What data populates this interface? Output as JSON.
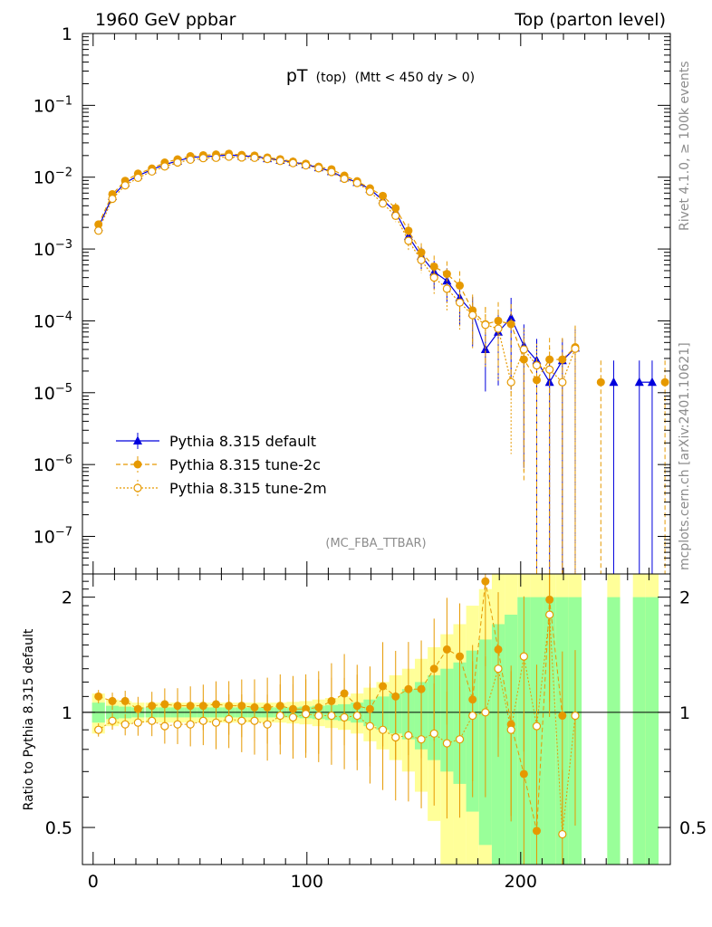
{
  "header": {
    "left": "1960 GeV ppbar",
    "right": "Top (parton level)"
  },
  "plot_title": {
    "main": "pT",
    "sub1": "(top)",
    "sub2": "(Mtt < 450 dy > 0)"
  },
  "side_labels": {
    "rivet": "Rivet 4.1.0, ≥ 100k events",
    "mcplots": "mcplots.cern.ch [arXiv:2401.10621]"
  },
  "analysis_tag": "(MC_FBA_TTBAR)",
  "colors": {
    "default": "#0000dd",
    "tune2c": "#e69900",
    "tune2m": "#e69900",
    "band_inner": "#99ff99",
    "band_outer": "#ffff99"
  },
  "chart_data": [
    {
      "type": "line",
      "panel": "main",
      "title": "pT (top) (Mtt < 450 dy > 0)",
      "xlabel": "",
      "ylabel": "",
      "xlim": [
        -5,
        270
      ],
      "ylim": [
        3e-08,
        1.0
      ],
      "yscale": "log",
      "ytick_labels": [
        "1",
        "10^-1",
        "10^-2",
        "10^-3",
        "10^-4",
        "10^-5",
        "10^-6",
        "10^-7"
      ],
      "legend": [
        "Pythia 8.315 default",
        "Pythia 8.315 tune-2c",
        "Pythia 8.315 tune-2m"
      ],
      "x": [
        2.5,
        9,
        15,
        21,
        27.5,
        33.5,
        39.5,
        45.5,
        51.5,
        57.5,
        63.5,
        69.5,
        75.5,
        81.5,
        87.5,
        93.5,
        99.5,
        105.5,
        111.5,
        117.5,
        123.5,
        129.5,
        135.5,
        141.5,
        147.5,
        153.5,
        159.5,
        165.5,
        171.5,
        177.5,
        183.5,
        189.5,
        195.5,
        201.5,
        207.5,
        213.5,
        219.5,
        225.5,
        231.5,
        237.5,
        243.5,
        249.5,
        255.5,
        261.5,
        267.5
      ],
      "series": [
        {
          "name": "Pythia 8.315 default",
          "values": [
            0.002,
            0.0054,
            0.0083,
            0.0105,
            0.0127,
            0.015,
            0.0168,
            0.0188,
            0.0193,
            0.0197,
            0.0205,
            0.0197,
            0.0195,
            0.0182,
            0.0172,
            0.0162,
            0.015,
            0.0136,
            0.012,
            0.0098,
            0.0085,
            0.0068,
            0.0048,
            0.0033,
            0.0015,
            0.0008,
            0.00048,
            0.00036,
            0.00021,
            0.00013,
            4e-05,
            7e-05,
            0.00011,
            4.5e-05,
            2.8e-05,
            1.4e-05,
            2.8e-05,
            4.2e-05,
            null,
            null,
            1.4e-05,
            null,
            1.4e-05,
            1.4e-05,
            null
          ]
        },
        {
          "name": "Pythia 8.315 tune-2c",
          "values": [
            0.0022,
            0.0058,
            0.0089,
            0.0112,
            0.0132,
            0.016,
            0.0177,
            0.0196,
            0.0202,
            0.0207,
            0.0212,
            0.0204,
            0.02,
            0.0188,
            0.0178,
            0.0165,
            0.0154,
            0.014,
            0.0129,
            0.0105,
            0.0088,
            0.007,
            0.0055,
            0.0037,
            0.0018,
            0.0009,
            0.00057,
            0.00045,
            0.00031,
            0.00014,
            9e-05,
            0.0001,
            9e-05,
            2.9e-05,
            1.5e-05,
            2.9e-05,
            2.9e-05,
            4.3e-05,
            null,
            1.4e-05,
            null,
            null,
            null,
            null,
            1.4e-05
          ]
        },
        {
          "name": "Pythia 8.315 tune-2m",
          "values": [
            0.0018,
            0.005,
            0.0077,
            0.0098,
            0.012,
            0.0141,
            0.016,
            0.0175,
            0.0184,
            0.0186,
            0.0193,
            0.0188,
            0.0186,
            0.0179,
            0.0168,
            0.0157,
            0.0146,
            0.0133,
            0.0118,
            0.0095,
            0.0083,
            0.0063,
            0.0043,
            0.0029,
            0.0013,
            0.0007,
            0.0004,
            0.00028,
            0.00018,
            0.00012,
            8.8e-05,
            7.8e-05,
            1.4e-05,
            4e-05,
            2.4e-05,
            2.1e-05,
            1.4e-05,
            4.1e-05,
            null,
            null,
            null,
            null,
            null,
            null,
            null
          ]
        }
      ]
    },
    {
      "type": "line",
      "panel": "ratio",
      "xlabel": "",
      "ylabel": "Ratio to Pythia 8.315 default",
      "xlim": [
        -5,
        270
      ],
      "ylim": [
        0.4,
        2.3
      ],
      "yscale": "log",
      "yticks": [
        0.5,
        1,
        2
      ],
      "xticks": [
        0,
        100,
        200
      ],
      "x": [
        2.5,
        9,
        15,
        21,
        27.5,
        33.5,
        39.5,
        45.5,
        51.5,
        57.5,
        63.5,
        69.5,
        75.5,
        81.5,
        87.5,
        93.5,
        99.5,
        105.5,
        111.5,
        117.5,
        123.5,
        129.5,
        135.5,
        141.5,
        147.5,
        153.5,
        159.5,
        165.5,
        171.5,
        177.5,
        183.5,
        189.5,
        195.5,
        201.5,
        207.5,
        213.5,
        219.5,
        225.5,
        231.5,
        237.5,
        243.5,
        249.5,
        255.5,
        261.5,
        267.5
      ],
      "band_inner": [
        0.06,
        0.04,
        0.035,
        0.03,
        0.03,
        0.03,
        0.03,
        0.03,
        0.03,
        0.03,
        0.03,
        0.03,
        0.03,
        0.03,
        0.03,
        0.03,
        0.035,
        0.04,
        0.045,
        0.05,
        0.06,
        0.08,
        0.1,
        0.12,
        0.15,
        0.2,
        0.25,
        0.3,
        0.35,
        0.45,
        0.55,
        0.7,
        0.8,
        1.0,
        1.0,
        1.0,
        1.0,
        1.0,
        null,
        null,
        1.0,
        null,
        1.0,
        1.0,
        null
      ],
      "band_outer": [
        0.12,
        0.08,
        0.07,
        0.06,
        0.06,
        0.06,
        0.06,
        0.06,
        0.06,
        0.06,
        0.06,
        0.06,
        0.06,
        0.06,
        0.06,
        0.065,
        0.07,
        0.08,
        0.09,
        0.1,
        0.12,
        0.16,
        0.2,
        0.25,
        0.3,
        0.38,
        0.48,
        0.6,
        0.7,
        0.9,
        1.1,
        1.3,
        1.4,
        1.6,
        1.7,
        1.8,
        1.8,
        1.8,
        null,
        null,
        2.0,
        null,
        2.0,
        2.0,
        null
      ],
      "series": [
        {
          "name": "Pythia 8.315 tune-2c",
          "values": [
            1.1,
            1.07,
            1.07,
            1.02,
            1.04,
            1.05,
            1.04,
            1.04,
            1.04,
            1.05,
            1.04,
            1.04,
            1.03,
            1.03,
            1.04,
            1.02,
            1.02,
            1.03,
            1.07,
            1.12,
            1.04,
            1.02,
            1.17,
            1.1,
            1.15,
            1.15,
            1.3,
            1.46,
            1.4,
            1.08,
            2.2,
            1.46,
            0.93,
            0.69,
            0.49,
            1.97,
            0.98,
            null,
            null,
            null,
            null,
            null,
            null,
            null,
            null
          ]
        },
        {
          "name": "Pythia 8.315 tune-2m",
          "values": [
            0.9,
            0.95,
            0.93,
            0.94,
            0.95,
            0.92,
            0.93,
            0.93,
            0.95,
            0.94,
            0.96,
            0.95,
            0.95,
            0.93,
            0.98,
            0.97,
            0.99,
            0.98,
            0.98,
            0.97,
            0.98,
            0.92,
            0.9,
            0.86,
            0.87,
            0.85,
            0.88,
            0.83,
            0.85,
            0.98,
            1.0,
            1.3,
            0.9,
            1.4,
            0.92,
            1.8,
            0.48,
            0.98,
            null,
            null,
            null,
            null,
            null,
            null,
            null
          ]
        }
      ]
    }
  ],
  "ratio_axis": {
    "ylabel": "Ratio to Pythia 8.315 default",
    "ytick_labels": [
      "2",
      "1",
      "0.5"
    ],
    "xtick_labels": [
      "0",
      "100",
      "200"
    ]
  }
}
